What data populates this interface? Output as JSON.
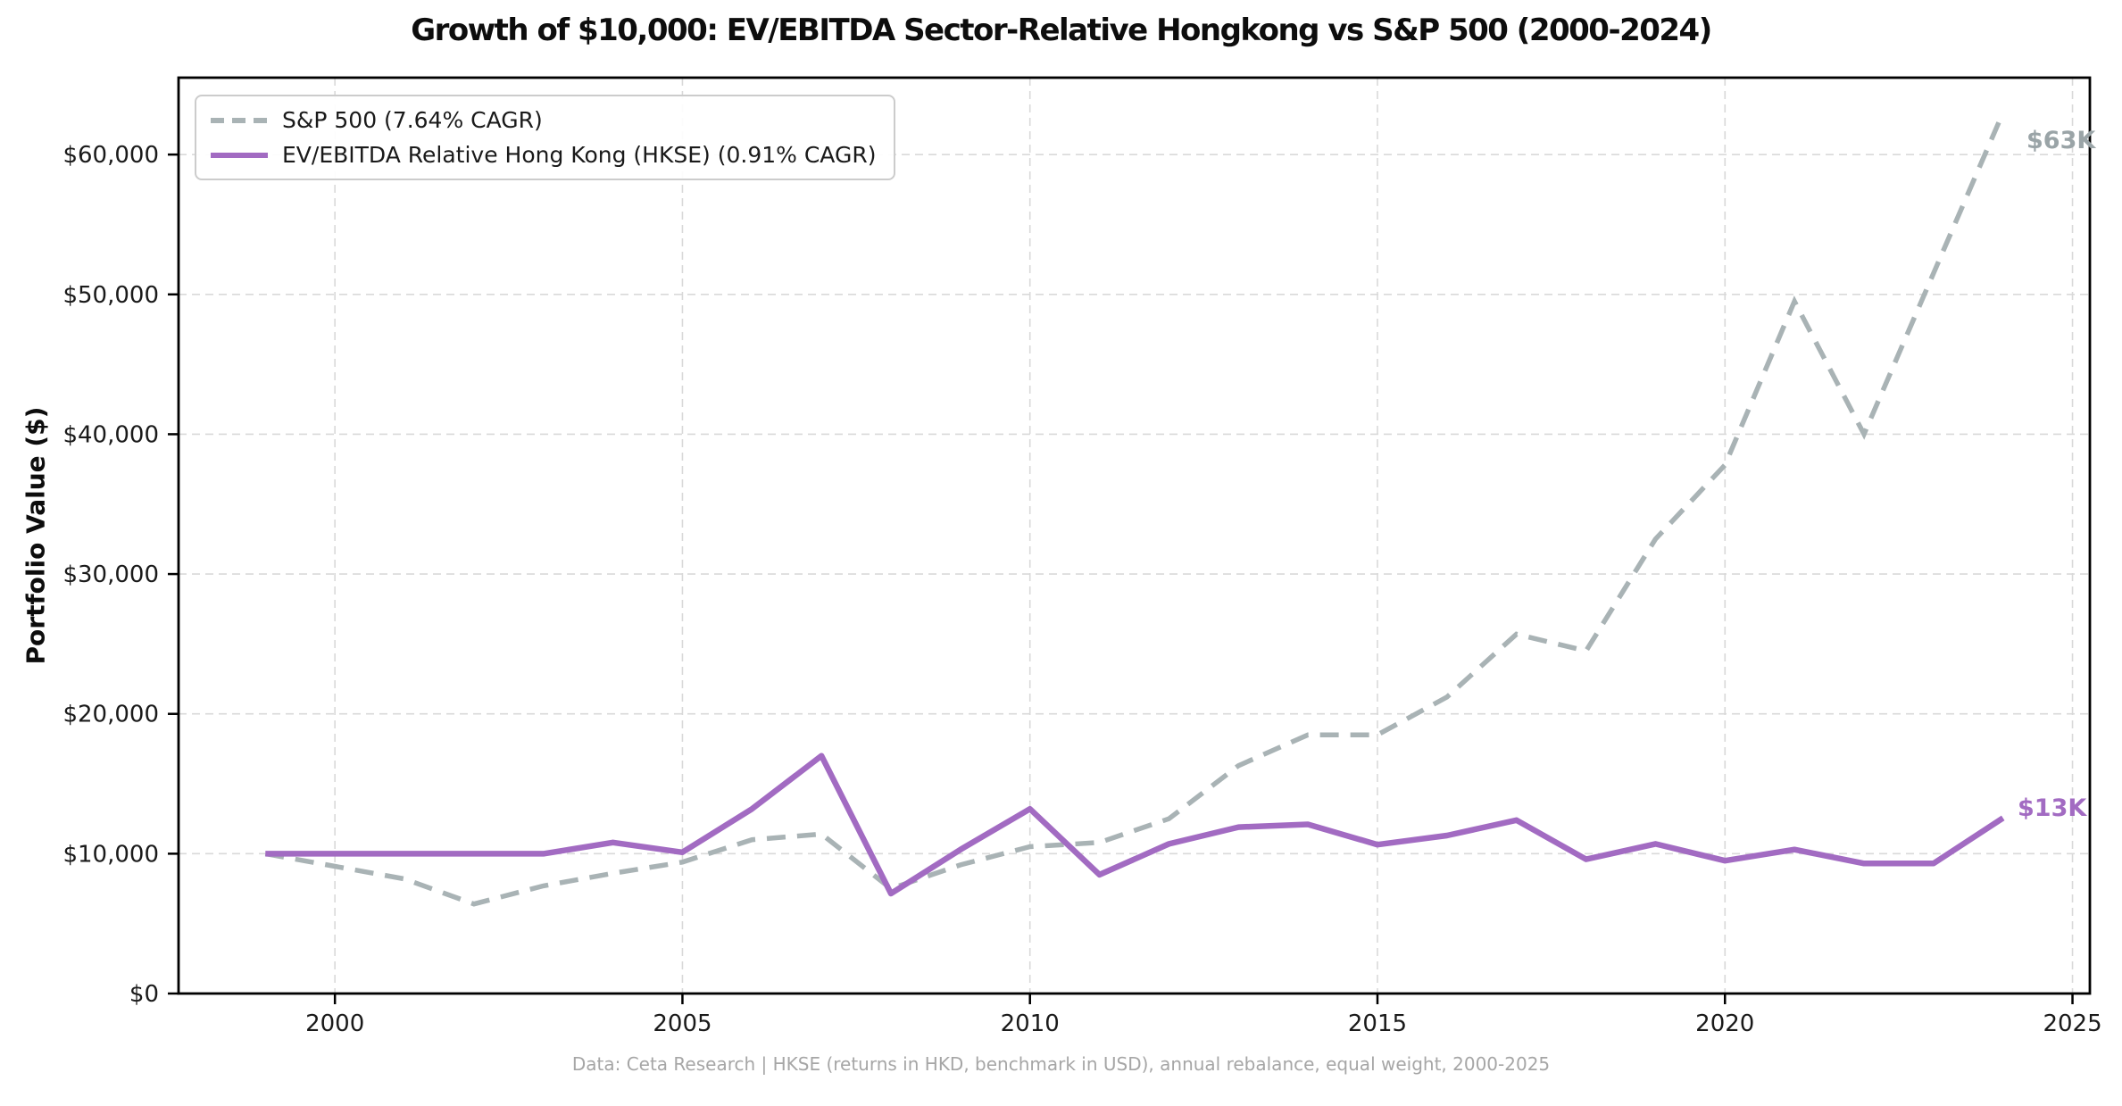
{
  "title": "Growth of $10,000: EV/EBITDA Sector-Relative Hongkong vs S&P 500 (2000-2024)",
  "y_axis_title": "Portfolio Value ($)",
  "footer": "Data: Ceta Research | HKSE (returns in HKD, benchmark in USD), annual rebalance, equal weight, 2000-2025",
  "legend": {
    "items": [
      {
        "label": "S&P 500 (7.64% CAGR)",
        "color": "#a9b3b5",
        "style": "dashed"
      },
      {
        "label": "EV/EBITDA Relative Hong Kong (HKSE) (0.91% CAGR)",
        "color": "#a26bc2",
        "style": "solid"
      }
    ]
  },
  "end_labels": {
    "sp500": "$63K",
    "hk": "$13K"
  },
  "colors": {
    "sp500_line": "#a9b3b5",
    "sp500_label": "#9aa4a7",
    "hk_line": "#a26bc2",
    "hk_label": "#a26bc2",
    "grid": "#d9d9d9",
    "spine": "#000000",
    "tick_text": "#1a1a1a"
  },
  "chart_data": {
    "type": "line",
    "title": "Growth of $10,000: EV/EBITDA Sector-Relative Hongkong vs S&P 500 (2000-2024)",
    "xlabel": "",
    "ylabel": "Portfolio Value ($)",
    "xlim": [
      1997.75,
      2025.25
    ],
    "ylim": [
      0,
      65500
    ],
    "grid": true,
    "legend_position": "upper left",
    "x": [
      1999,
      2000,
      2001,
      2002,
      2003,
      2004,
      2005,
      2006,
      2007,
      2008,
      2009,
      2010,
      2011,
      2012,
      2013,
      2014,
      2015,
      2016,
      2017,
      2018,
      2019,
      2020,
      2021,
      2022,
      2023,
      2024
    ],
    "series": [
      {
        "name": "S&P 500 (7.64% CAGR)",
        "style": "dashed",
        "values": [
          10000,
          9100,
          8200,
          6400,
          7700,
          8600,
          9400,
          11000,
          11400,
          7500,
          9200,
          10500,
          10800,
          12500,
          16300,
          18500,
          18500,
          21200,
          25700,
          24500,
          32500,
          37800,
          49500,
          40000,
          51500,
          63000
        ]
      },
      {
        "name": "EV/EBITDA Relative Hong Kong (HKSE) (0.91% CAGR)",
        "style": "solid",
        "values": [
          10000,
          10000,
          10000,
          10000,
          10000,
          10800,
          10100,
          13200,
          17000,
          7150,
          10300,
          13200,
          8500,
          10700,
          11900,
          12100,
          10650,
          11300,
          12400,
          9600,
          10700,
          9500,
          10300,
          9300,
          9300,
          12550
        ]
      }
    ],
    "x_ticks": [
      2000,
      2005,
      2010,
      2015,
      2020,
      2025
    ],
    "x_tick_labels": [
      "2000",
      "2005",
      "2010",
      "2015",
      "2020",
      "2025"
    ],
    "y_ticks": [
      0,
      10000,
      20000,
      30000,
      40000,
      50000,
      60000
    ],
    "y_tick_labels": [
      "$0",
      "$10,000",
      "$20,000",
      "$30,000",
      "$40,000",
      "$50,000",
      "$60,000"
    ]
  }
}
